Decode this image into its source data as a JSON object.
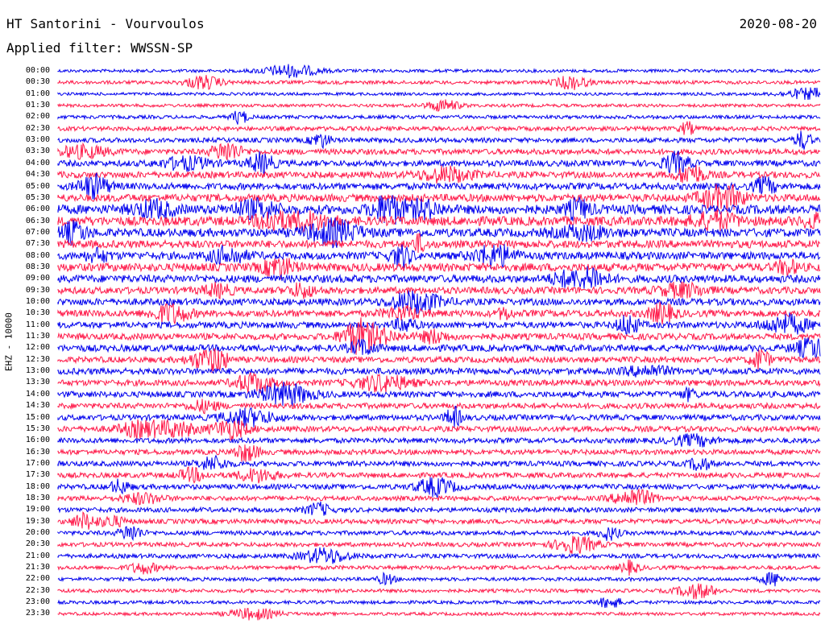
{
  "header": {
    "station": "HT Santorini - Vourvoulos",
    "date": "2020-08-20",
    "filter": "Applied filter: WWSSN-SP"
  },
  "channel_label": "EHZ - 10000",
  "colors": {
    "odd": "#0000ee",
    "even": "#ff1a4a"
  },
  "time_labels": [
    "00:00",
    "00:30",
    "01:00",
    "01:30",
    "02:00",
    "02:30",
    "03:00",
    "03:30",
    "04:00",
    "04:30",
    "05:00",
    "05:30",
    "06:00",
    "06:30",
    "07:00",
    "07:30",
    "08:00",
    "08:30",
    "09:00",
    "09:30",
    "10:00",
    "10:30",
    "11:00",
    "11:30",
    "12:00",
    "12:30",
    "13:00",
    "13:30",
    "14:00",
    "14:30",
    "15:00",
    "15:30",
    "16:00",
    "16:30",
    "17:00",
    "17:30",
    "18:00",
    "18:30",
    "19:00",
    "19:30",
    "20:00",
    "20:30",
    "21:00",
    "21:30",
    "22:00",
    "22:30",
    "23:00",
    "23:30"
  ],
  "noise_levels": [
    0.15,
    0.2,
    0.12,
    0.15,
    0.2,
    0.3,
    0.35,
    0.45,
    0.5,
    0.55,
    0.6,
    0.7,
    0.9,
    0.9,
    0.8,
    0.7,
    0.7,
    0.75,
    0.7,
    0.6,
    0.6,
    0.6,
    0.55,
    0.55,
    0.6,
    0.5,
    0.55,
    0.5,
    0.5,
    0.45,
    0.45,
    0.45,
    0.4,
    0.4,
    0.4,
    0.4,
    0.4,
    0.35,
    0.35,
    0.35,
    0.3,
    0.3,
    0.3,
    0.25,
    0.2,
    0.2,
    0.18,
    0.15
  ]
}
